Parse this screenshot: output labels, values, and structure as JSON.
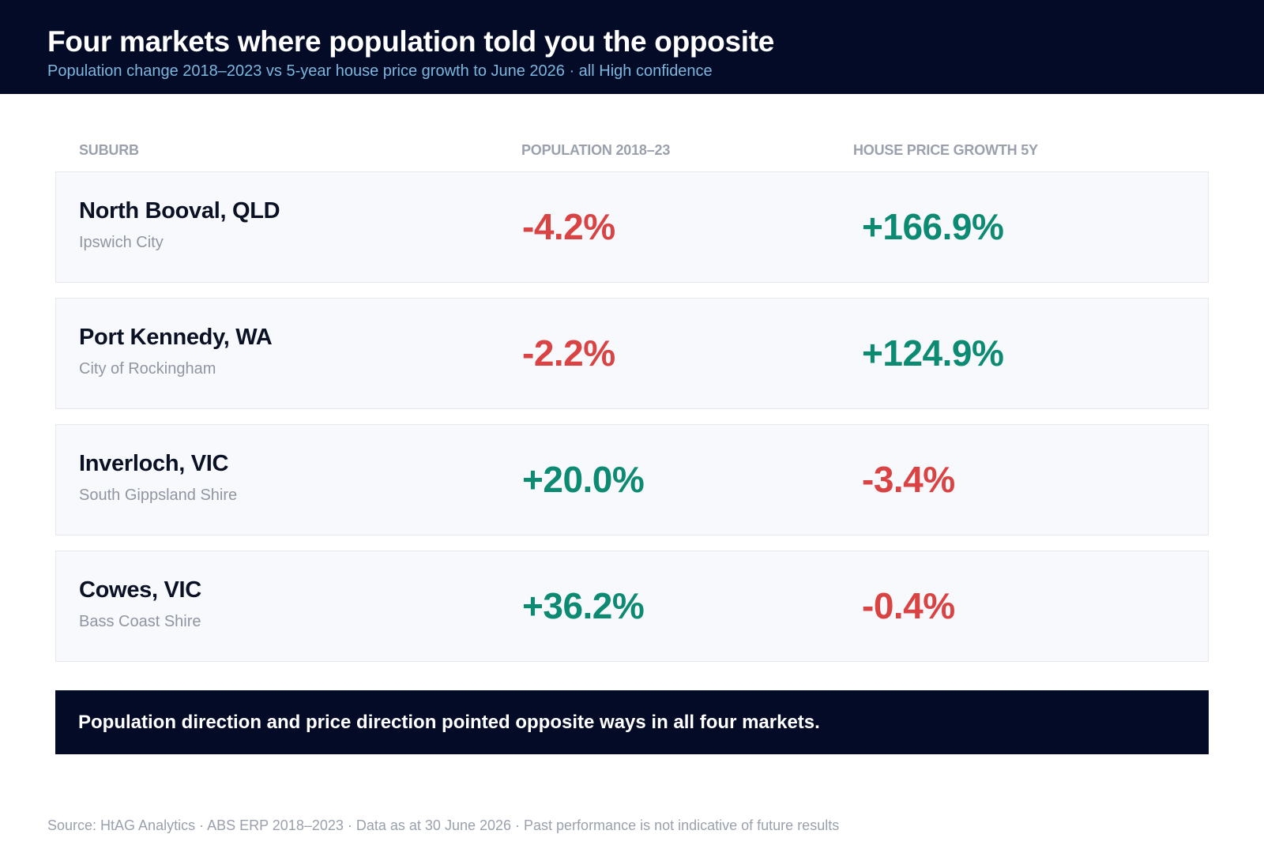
{
  "header": {
    "title": "Four markets where population told you the opposite",
    "subtitle": "Population change 2018–2023 vs 5-year house price growth to June 2026 · all High confidence"
  },
  "columns": {
    "suburb": "SUBURB",
    "population": "POPULATION 2018–23",
    "price": "HOUSE PRICE GROWTH 5Y"
  },
  "rows": [
    {
      "suburb": "North Booval, QLD",
      "lga": "Ipswich City",
      "population": "-4.2%",
      "price": "+166.9%"
    },
    {
      "suburb": "Port Kennedy, WA",
      "lga": "City of Rockingham",
      "population": "-2.2%",
      "price": "+124.9%"
    },
    {
      "suburb": "Inverloch, VIC",
      "lga": "South Gippsland Shire",
      "population": "+20.0%",
      "price": "-3.4%"
    },
    {
      "suburb": "Cowes, VIC",
      "lga": "Bass Coast Shire",
      "population": "+36.2%",
      "price": "-0.4%"
    }
  ],
  "callout": "Population direction and price direction pointed opposite ways in all four markets.",
  "source": "Source: HtAG Analytics · ABS ERP 2018–2023 · Data as at 30 June 2026 · Past performance is not indicative of future results",
  "colors": {
    "negative": "#d94343",
    "positive": "#0d8a72",
    "navy": "#030b26"
  }
}
